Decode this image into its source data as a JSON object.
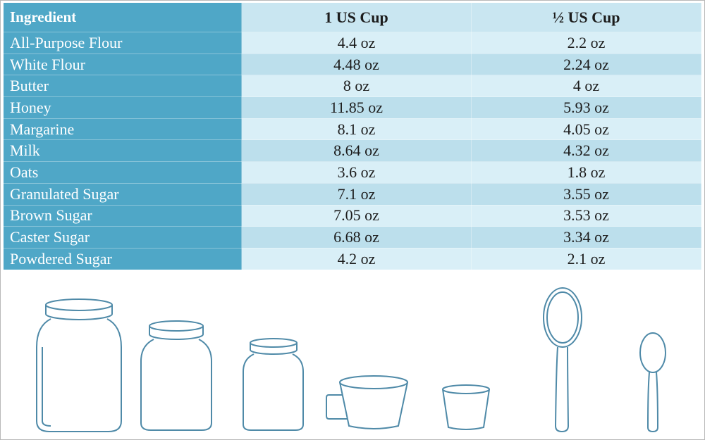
{
  "table": {
    "header": [
      "Ingredient",
      "1 US Cup",
      "½ US Cup"
    ],
    "rows": [
      [
        "All-Purpose Flour",
        "4.4 oz",
        "2.2 oz"
      ],
      [
        "White Flour",
        "4.48 oz",
        "2.24 oz"
      ],
      [
        "Butter",
        "8 oz",
        "4 oz"
      ],
      [
        "Honey",
        "11.85 oz",
        "5.93 oz"
      ],
      [
        "Margarine",
        "8.1 oz",
        "4.05 oz"
      ],
      [
        "Milk",
        "8.64 oz",
        "4.32 oz"
      ],
      [
        "Oats",
        "3.6 oz",
        "1.8 oz"
      ],
      [
        "Granulated Sugar",
        "7.1 oz",
        "3.55 oz"
      ],
      [
        "Brown Sugar",
        "7.05 oz",
        "3.53 oz"
      ],
      [
        "Caster Sugar",
        "6.68 oz",
        "3.34 oz"
      ],
      [
        "Powdered Sugar",
        "4.2 oz",
        "2.1 oz"
      ]
    ]
  }
}
